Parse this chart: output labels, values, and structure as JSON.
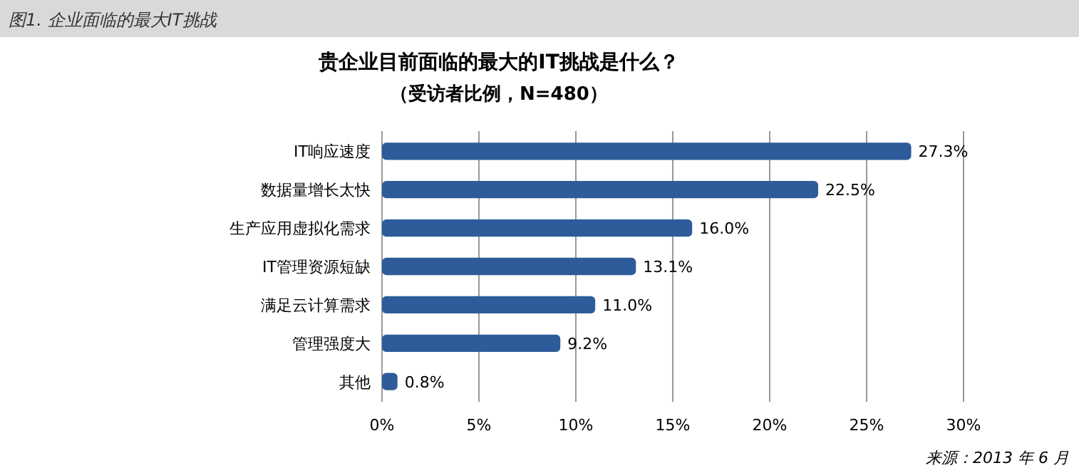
{
  "chart_data": {
    "type": "bar",
    "orientation": "horizontal",
    "title": "贵企业目前面临的最大的IT挑战是什么？",
    "subtitle": "（受访者比例，N=480）",
    "categories": [
      "IT响应速度",
      "数据量增长太快",
      "生产应用虚拟化需求",
      "IT管理资源短缺",
      "满足云计算需求",
      "管理强度大",
      "其他"
    ],
    "values": [
      27.3,
      22.5,
      16.0,
      13.1,
      11.0,
      9.2,
      0.8
    ],
    "value_labels": [
      "27.3%",
      "22.5%",
      "16.0%",
      "13.1%",
      "11.0%",
      "9.2%",
      "0.8%"
    ],
    "color": "#2e5c9a",
    "xlim": [
      0,
      30
    ],
    "xticks": [
      {
        "value": 0,
        "label": "0%"
      },
      {
        "value": 5,
        "label": "5%"
      },
      {
        "value": 10,
        "label": "10%"
      },
      {
        "value": 15,
        "label": "15%"
      },
      {
        "value": 20,
        "label": "20%"
      },
      {
        "value": 25,
        "label": "25%"
      },
      {
        "value": 30,
        "label": "30%"
      }
    ],
    "grid": "x",
    "annotations": [
      "图1. 企业面临的最大IT挑战",
      "来源：2013 年 6 月"
    ]
  }
}
